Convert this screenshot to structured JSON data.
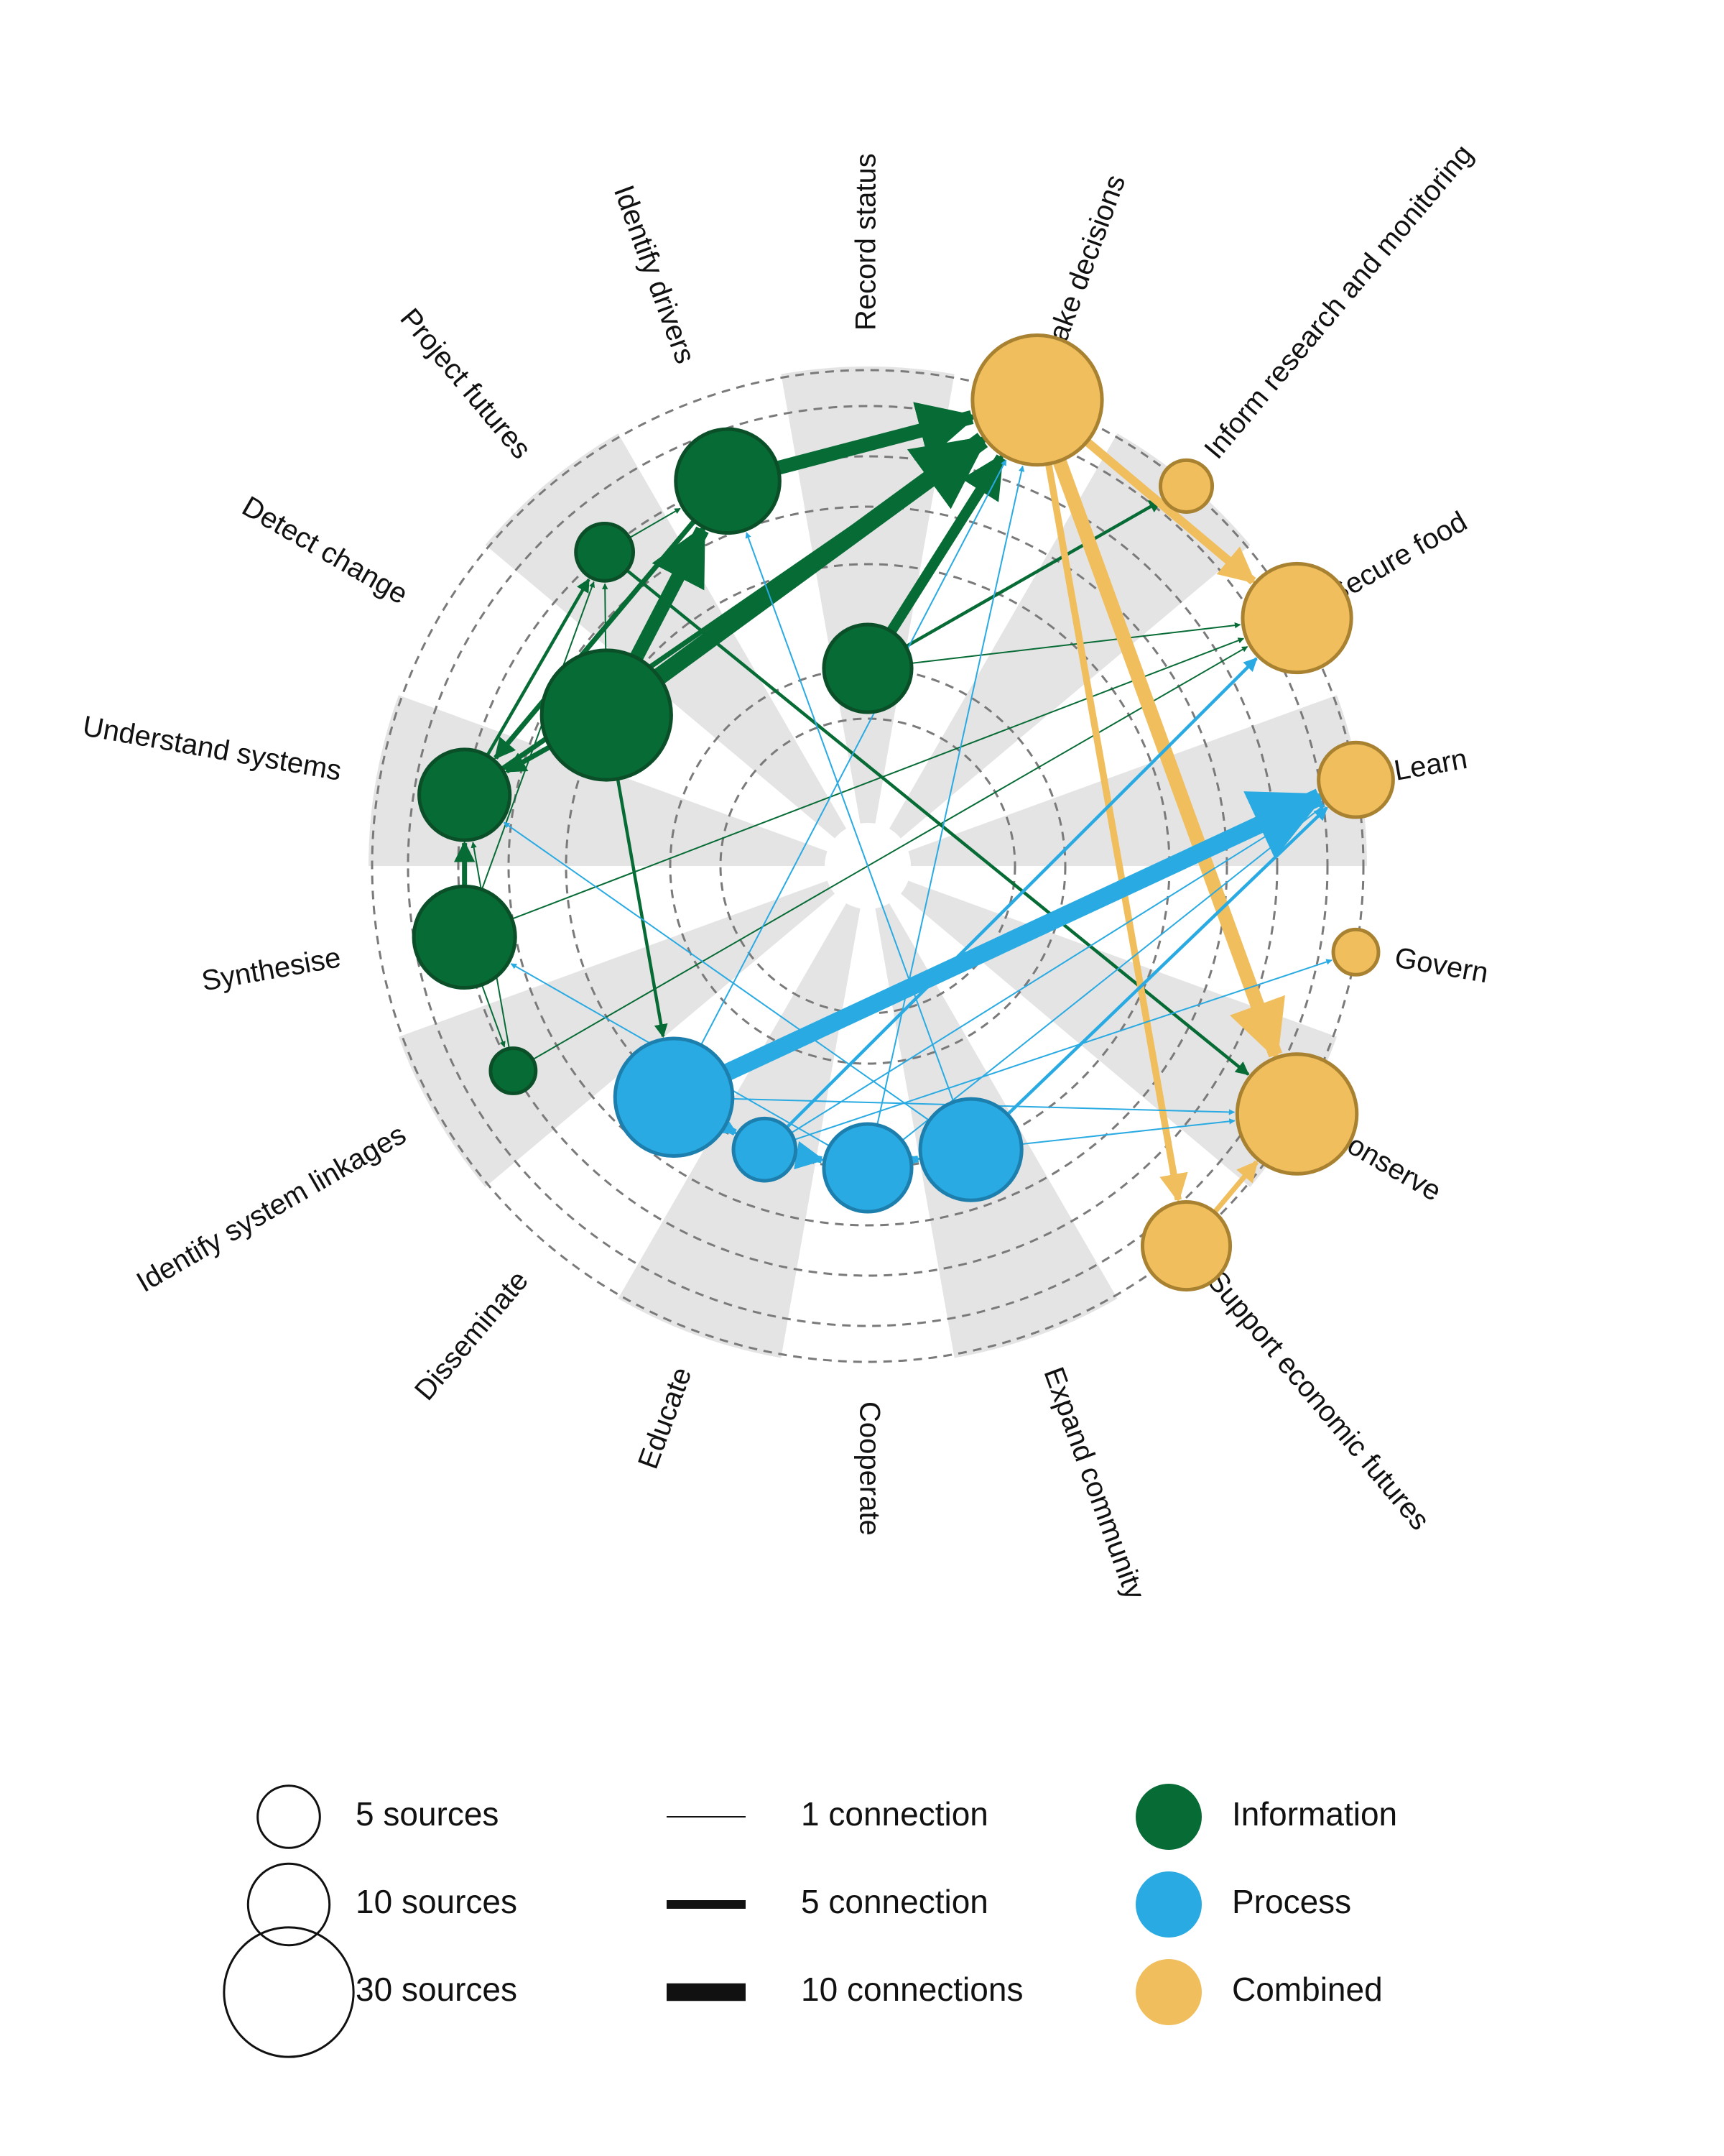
{
  "colors": {
    "information": "#076b35",
    "information_edge": "#0a4f28",
    "process": "#29aae2",
    "process_edge": "#1d7fad",
    "combined": "#f0be5c",
    "combined_edge": "#a88231",
    "wedge": "#e4e4e4",
    "ring": "#7a7a7a"
  },
  "categories": [
    "Record status",
    "Make decisions",
    "Inform research and monitoring",
    "Secure food",
    "Learn",
    "Govern",
    "Conserve",
    "Support economic futures",
    "Expand community",
    "Cooperate",
    "Educate",
    "Disseminate",
    "Identify system linkages",
    "Synthesise",
    "Understand systems",
    "Detect change",
    "Project futures",
    "Identify drivers"
  ],
  "nodes": [
    {
      "id": "make-decisions",
      "category": "Make decisions",
      "type": "combined",
      "sources": 30,
      "ring": 4
    },
    {
      "id": "inform-research",
      "category": "Inform research and monitoring",
      "type": "combined",
      "sources": 3,
      "ring": 4
    },
    {
      "id": "secure-food",
      "category": "Secure food",
      "type": "combined",
      "sources": 20,
      "ring": 4
    },
    {
      "id": "learn",
      "category": "Learn",
      "type": "combined",
      "sources": 8,
      "ring": 4
    },
    {
      "id": "govern",
      "category": "Govern",
      "type": "combined",
      "sources": 2,
      "ring": 4
    },
    {
      "id": "conserve",
      "category": "Conserve",
      "type": "combined",
      "sources": 25,
      "ring": 4
    },
    {
      "id": "support-economic",
      "category": "Support economic futures",
      "type": "combined",
      "sources": 12,
      "ring": 4
    },
    {
      "id": "identify-drivers",
      "category": "Identify drivers",
      "type": "information",
      "sources": 18,
      "ring": 3
    },
    {
      "id": "record-status",
      "category": "Record status",
      "type": "information",
      "sources": 12,
      "ring": 1
    },
    {
      "id": "project-futures",
      "category": "Project futures",
      "type": "information",
      "sources": 4,
      "ring": 3
    },
    {
      "id": "detect-change",
      "category": "Detect change",
      "type": "information",
      "sources": 30,
      "ring": 2
    },
    {
      "id": "understand-systems",
      "category": "Understand systems",
      "type": "information",
      "sources": 13,
      "ring": 3
    },
    {
      "id": "synthesise",
      "category": "Synthesise",
      "type": "information",
      "sources": 17,
      "ring": 3
    },
    {
      "id": "identify-linkages",
      "category": "Identify system linkages",
      "type": "information",
      "sources": 2,
      "ring": 3
    },
    {
      "id": "disseminate",
      "category": "Disseminate",
      "type": "process",
      "sources": 24,
      "ring": 2
    },
    {
      "id": "educate",
      "category": "Educate",
      "type": "process",
      "sources": 5,
      "ring": 2
    },
    {
      "id": "cooperate",
      "category": "Cooperate",
      "type": "process",
      "sources": 12,
      "ring": 2
    },
    {
      "id": "expand-community",
      "category": "Expand community",
      "type": "process",
      "sources": 17,
      "ring": 2
    }
  ],
  "edges": [
    {
      "from": "identify-drivers",
      "to": "make-decisions",
      "count": 8,
      "type": "information"
    },
    {
      "from": "detect-change",
      "to": "make-decisions",
      "count": 10,
      "type": "information"
    },
    {
      "from": "detect-change",
      "to": "identify-drivers",
      "count": 8,
      "type": "information"
    },
    {
      "from": "record-status",
      "to": "make-decisions",
      "count": 6,
      "type": "information"
    },
    {
      "from": "understand-systems",
      "to": "make-decisions",
      "count": 3,
      "type": "information"
    },
    {
      "from": "project-futures",
      "to": "identify-drivers",
      "count": 1,
      "type": "information"
    },
    {
      "from": "project-futures",
      "to": "conserve",
      "count": 2,
      "type": "information"
    },
    {
      "from": "detect-change",
      "to": "understand-systems",
      "count": 3,
      "type": "information"
    },
    {
      "from": "identify-drivers",
      "to": "understand-systems",
      "count": 3,
      "type": "information"
    },
    {
      "from": "synthesise",
      "to": "understand-systems",
      "count": 3,
      "type": "information"
    },
    {
      "from": "understand-systems",
      "to": "project-futures",
      "count": 2,
      "type": "information"
    },
    {
      "from": "synthesise",
      "to": "project-futures",
      "count": 1,
      "type": "information"
    },
    {
      "from": "detect-change",
      "to": "project-futures",
      "count": 1,
      "type": "information"
    },
    {
      "from": "detect-change",
      "to": "disseminate",
      "count": 2,
      "type": "information"
    },
    {
      "from": "synthesise",
      "to": "secure-food",
      "count": 1,
      "type": "information"
    },
    {
      "from": "record-status",
      "to": "secure-food",
      "count": 1,
      "type": "information"
    },
    {
      "from": "record-status",
      "to": "inform-research",
      "count": 2,
      "type": "information"
    },
    {
      "from": "identify-linkages",
      "to": "secure-food",
      "count": 1,
      "type": "information"
    },
    {
      "from": "synthesise",
      "to": "identify-linkages",
      "count": 1,
      "type": "information"
    },
    {
      "from": "identify-linkages",
      "to": "understand-systems",
      "count": 1,
      "type": "information"
    },
    {
      "from": "make-decisions",
      "to": "secure-food",
      "count": 5,
      "type": "combined"
    },
    {
      "from": "make-decisions",
      "to": "conserve",
      "count": 8,
      "type": "combined"
    },
    {
      "from": "make-decisions",
      "to": "support-economic",
      "count": 4,
      "type": "combined"
    },
    {
      "from": "support-economic",
      "to": "conserve",
      "count": 3,
      "type": "combined"
    },
    {
      "from": "disseminate",
      "to": "learn",
      "count": 10,
      "type": "process"
    },
    {
      "from": "disseminate",
      "to": "educate",
      "count": 4,
      "type": "process"
    },
    {
      "from": "educate",
      "to": "cooperate",
      "count": 4,
      "type": "process"
    },
    {
      "from": "cooperate",
      "to": "expand-community",
      "count": 4,
      "type": "process"
    },
    {
      "from": "disseminate",
      "to": "conserve",
      "count": 1,
      "type": "process"
    },
    {
      "from": "disseminate",
      "to": "make-decisions",
      "count": 1,
      "type": "process"
    },
    {
      "from": "expand-community",
      "to": "learn",
      "count": 2,
      "type": "process"
    },
    {
      "from": "expand-community",
      "to": "understand-systems",
      "count": 1,
      "type": "process"
    },
    {
      "from": "expand-community",
      "to": "identify-drivers",
      "count": 1,
      "type": "process"
    },
    {
      "from": "expand-community",
      "to": "conserve",
      "count": 1,
      "type": "process"
    },
    {
      "from": "educate",
      "to": "secure-food",
      "count": 2,
      "type": "process"
    },
    {
      "from": "educate",
      "to": "learn",
      "count": 1,
      "type": "process"
    },
    {
      "from": "cooperate",
      "to": "make-decisions",
      "count": 1,
      "type": "process"
    },
    {
      "from": "cooperate",
      "to": "synthesise",
      "count": 1,
      "type": "process"
    },
    {
      "from": "cooperate",
      "to": "learn",
      "count": 1,
      "type": "process"
    },
    {
      "from": "educate",
      "to": "govern",
      "count": 1,
      "type": "process"
    }
  ],
  "legend": {
    "sizes": [
      {
        "label": "5 sources",
        "sources": 5
      },
      {
        "label": "10 sources",
        "sources": 10
      },
      {
        "label": "30 sources",
        "sources": 30
      }
    ],
    "widths": [
      {
        "label": "1 connection",
        "count": 1
      },
      {
        "label": "5 connection",
        "count": 5
      },
      {
        "label": "10 connections",
        "count": 10
      }
    ],
    "types": [
      {
        "label": "Information",
        "type": "information"
      },
      {
        "label": "Process",
        "type": "process"
      },
      {
        "label": "Combined",
        "type": "combined"
      }
    ]
  }
}
